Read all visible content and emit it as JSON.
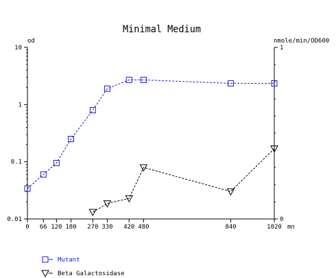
{
  "chart_data": {
    "type": "line",
    "title": "Minimal Medium",
    "y_left_label": "od",
    "y_right_label": "nmole/min/OD600",
    "x_unit": "mn",
    "x_ticks": [
      0,
      66,
      120,
      180,
      270,
      330,
      420,
      480,
      840,
      1020
    ],
    "x_tick_labels": [
      "0",
      "66",
      "120",
      "180",
      "270",
      "330",
      "420",
      "480",
      "840",
      "1020"
    ],
    "xlim": [
      0,
      1020
    ],
    "y_left": {
      "scale": "log",
      "ylim": [
        0.01,
        10
      ],
      "tick_values": [
        0.01,
        0.1,
        1,
        10
      ],
      "tick_labels": [
        "0.01",
        "0.1",
        "1",
        "10"
      ]
    },
    "y_right": {
      "scale": "linear",
      "ylim": [
        0,
        1
      ],
      "tick_values": [
        0,
        1
      ],
      "tick_labels": [
        "0",
        "1"
      ]
    },
    "grid": false,
    "legend_position": "bottom-left",
    "series": [
      {
        "name": "Mutant",
        "axis": "left",
        "marker": "square",
        "color": "#1a1adb",
        "x": [
          0,
          66,
          120,
          180,
          270,
          330,
          420,
          480,
          840,
          1020
        ],
        "y": [
          0.034,
          0.06,
          0.095,
          0.25,
          0.8,
          1.9,
          2.7,
          2.7,
          2.35,
          2.35
        ]
      },
      {
        "name": "Beta Galactosidase",
        "axis": "right",
        "marker": "triangle-down",
        "color": "#000000",
        "x": [
          270,
          330,
          420,
          480,
          840,
          1020
        ],
        "y": [
          0.04,
          0.09,
          0.12,
          0.3,
          0.16,
          0.41
        ]
      }
    ]
  }
}
